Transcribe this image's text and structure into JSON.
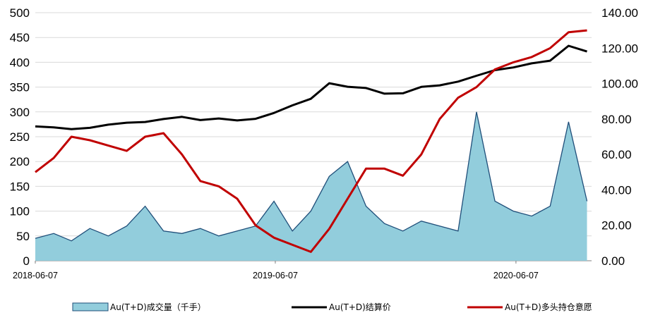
{
  "chart_data": {
    "type": "area+line",
    "x_ticks": [
      "2018-06-07",
      "2019-06-07",
      "2020-06-07"
    ],
    "x_range": [
      "2018-06-07",
      "2020-09-30"
    ],
    "y_left": {
      "ticks": [
        "0",
        "50",
        "100",
        "150",
        "200",
        "250",
        "300",
        "350",
        "400",
        "450",
        "500"
      ],
      "range": [
        0,
        500
      ]
    },
    "y_right": {
      "ticks": [
        "0.00",
        "20.00",
        "40.00",
        "60.00",
        "80.00",
        "100.00",
        "120.00",
        "140.00"
      ],
      "range": [
        0,
        140
      ]
    },
    "grid": "horizontal",
    "legend": {
      "position": "bottom"
    },
    "colors": {
      "volume_fill": "#92CDDC",
      "volume_line": "#1F4E79",
      "price": "#000000",
      "interest": "#C00000",
      "grid": "#D9D9D9"
    },
    "series": [
      {
        "name": "Au(T+D)成交量（千手）",
        "axis": "left",
        "style": "area",
        "x": [
          "2018-06-07",
          "2018-07-05",
          "2018-08-01",
          "2018-08-29",
          "2018-09-26",
          "2018-10-24",
          "2018-11-21",
          "2018-12-19",
          "2019-01-16",
          "2019-02-13",
          "2019-03-13",
          "2019-04-10",
          "2019-05-08",
          "2019-06-05",
          "2019-07-03",
          "2019-07-31",
          "2019-08-28",
          "2019-09-25",
          "2019-10-23",
          "2019-11-20",
          "2019-12-18",
          "2020-01-15",
          "2020-02-12",
          "2020-03-11",
          "2020-04-08",
          "2020-05-06",
          "2020-06-03",
          "2020-07-01",
          "2020-07-29",
          "2020-08-26",
          "2020-09-23"
        ],
        "values": [
          45,
          55,
          40,
          65,
          50,
          70,
          110,
          60,
          55,
          65,
          50,
          60,
          70,
          120,
          60,
          100,
          170,
          200,
          110,
          75,
          60,
          80,
          70,
          60,
          300,
          120,
          100,
          90,
          110,
          280,
          120
        ]
      },
      {
        "name": "Au(T+D)结算价",
        "axis": "right",
        "style": "line",
        "x": [
          "2018-06-07",
          "2018-07-05",
          "2018-08-01",
          "2018-08-29",
          "2018-09-26",
          "2018-10-24",
          "2018-11-21",
          "2018-12-19",
          "2019-01-16",
          "2019-02-13",
          "2019-03-13",
          "2019-04-10",
          "2019-05-08",
          "2019-06-05",
          "2019-07-03",
          "2019-07-31",
          "2019-08-28",
          "2019-09-25",
          "2019-10-23",
          "2019-11-20",
          "2019-12-18",
          "2020-01-15",
          "2020-02-12",
          "2020-03-11",
          "2020-04-08",
          "2020-05-06",
          "2020-06-03",
          "2020-07-01",
          "2020-07-29",
          "2020-08-26",
          "2020-09-23"
        ],
        "values": [
          75.8,
          75.3,
          74.3,
          75.0,
          76.8,
          77.9,
          78.3,
          80.0,
          81.2,
          79.4,
          80.3,
          79.2,
          80.1,
          83.4,
          87.7,
          91.4,
          100.2,
          98.2,
          97.5,
          94.3,
          94.5,
          98.1,
          99.0,
          101.1,
          104.4,
          107.6,
          109.1,
          111.4,
          112.9,
          121.3,
          118.1
        ]
      },
      {
        "name": "Au(T+D)多头持仓意愿",
        "axis": "right",
        "style": "line",
        "x": [
          "2018-06-07",
          "2018-07-05",
          "2018-08-01",
          "2018-08-29",
          "2018-09-26",
          "2018-10-24",
          "2018-11-21",
          "2018-12-19",
          "2019-01-16",
          "2019-02-13",
          "2019-03-13",
          "2019-04-10",
          "2019-05-08",
          "2019-06-05",
          "2019-07-03",
          "2019-07-31",
          "2019-08-28",
          "2019-09-25",
          "2019-10-23",
          "2019-11-20",
          "2019-12-18",
          "2020-01-15",
          "2020-02-12",
          "2020-03-11",
          "2020-04-08",
          "2020-05-06",
          "2020-06-03",
          "2020-07-01",
          "2020-07-29",
          "2020-08-26",
          "2020-09-23"
        ],
        "values": [
          50,
          58,
          70,
          68,
          65,
          62,
          70,
          72,
          60,
          45,
          42,
          35,
          20,
          13,
          9,
          5,
          18,
          35,
          52,
          52,
          48,
          60,
          80,
          92,
          98,
          108,
          112,
          115,
          120,
          129,
          130
        ]
      }
    ]
  }
}
